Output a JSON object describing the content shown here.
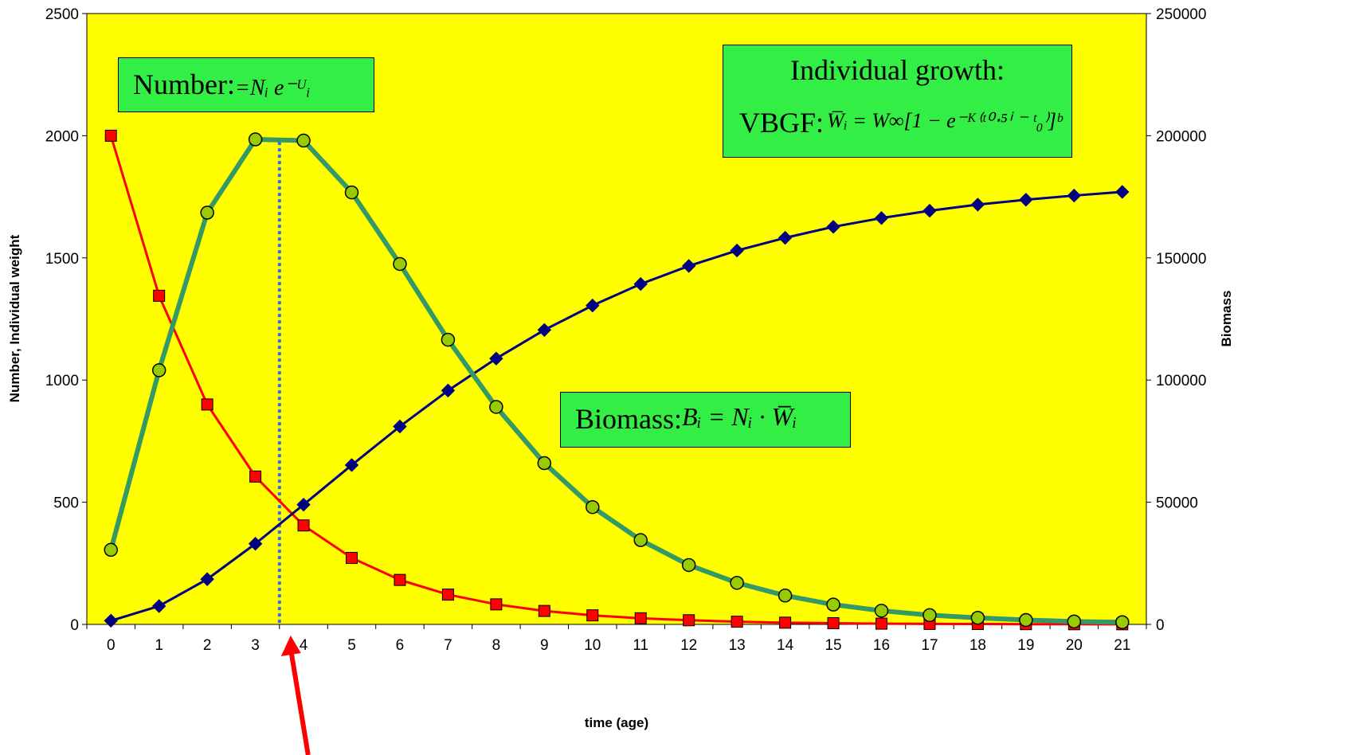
{
  "chart_data": {
    "type": "line",
    "plot_background": "#ffff00",
    "x_label": "time (age)",
    "y_left_label": "Number, Individual weight",
    "y_right_label": "Biomass",
    "x": [
      0,
      1,
      2,
      3,
      4,
      5,
      6,
      7,
      8,
      9,
      10,
      11,
      12,
      13,
      14,
      15,
      16,
      17,
      18,
      19,
      20,
      21
    ],
    "y_left_range": [
      0,
      2500
    ],
    "y_left_ticks": [
      0,
      500,
      1000,
      1500,
      2000,
      2500
    ],
    "y_right_range": [
      0,
      250000
    ],
    "y_right_ticks": [
      0,
      50000,
      100000,
      150000,
      200000,
      250000
    ],
    "series": [
      {
        "axis": "left",
        "color": "#ff0000",
        "marker": "square",
        "marker_fill": "#ff0000",
        "values": [
          2000,
          1345,
          900,
          605,
          405,
          272,
          182,
          122,
          82,
          55,
          37,
          25,
          17,
          11,
          7,
          5,
          3,
          2,
          1.5,
          1,
          0.7,
          0.5
        ]
      },
      {
        "axis": "left",
        "color": "#000080",
        "marker": "diamond",
        "marker_fill": "#000080",
        "values": [
          15,
          75,
          185,
          330,
          490,
          652,
          810,
          957,
          1088,
          1205,
          1305,
          1393,
          1467,
          1530,
          1582,
          1627,
          1663,
          1693,
          1718,
          1738,
          1755,
          1770
        ]
      },
      {
        "axis": "right",
        "color": "#339966",
        "marker": "circle",
        "marker_fill": "#99cc00",
        "values": [
          30500,
          104000,
          168500,
          198500,
          198000,
          176800,
          147500,
          116500,
          89000,
          66000,
          48000,
          34500,
          24300,
          17000,
          11800,
          8100,
          5600,
          3800,
          2700,
          1800,
          1200,
          900
        ]
      }
    ],
    "marker_line": {
      "x": 3.5,
      "color": "#3366ff",
      "style": "dotted"
    },
    "arrow": {
      "color": "#ff0000"
    }
  },
  "annotations": {
    "number": {
      "label": "Number:",
      "formula": "=Nᵢ e⁻ᵁᵢ"
    },
    "growth": {
      "title": "Individual growth:",
      "prefix": "VBGF:",
      "formula": "W̅ᵢ = W∞[1 − e⁻ᴷ⁽ᵗ⁰⋅⁵ⁱ ⁻ ᵗ₀⁾]ᵇ"
    },
    "biomass": {
      "label": "Biomass:",
      "formula": "Bᵢ = Nᵢ · W̅ᵢ"
    }
  }
}
